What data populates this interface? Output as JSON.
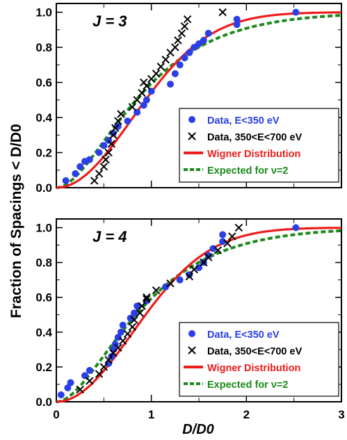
{
  "figure": {
    "ylabel": "Fraction of Spacings < D/D0",
    "xlabel": "D/D0"
  },
  "chart_data": [
    {
      "type": "scatter",
      "panel_label": "J = 3",
      "xlim": [
        0,
        3
      ],
      "ylim": [
        0,
        1.05
      ],
      "x_ticks": [
        "0",
        "1",
        "2",
        "3"
      ],
      "y_ticks": [
        "0.0",
        "0.2",
        "0.4",
        "0.6",
        "0.8",
        "1.0"
      ],
      "legend_position": "lower-right",
      "series": [
        {
          "name": "Data, E<350 eV",
          "marker": "circle",
          "color": "#2b3fe6",
          "points": [
            [
              0.1,
              0.04
            ],
            [
              0.2,
              0.08
            ],
            [
              0.25,
              0.12
            ],
            [
              0.3,
              0.15
            ],
            [
              0.35,
              0.16
            ],
            [
              0.45,
              0.2
            ],
            [
              0.5,
              0.24
            ],
            [
              0.55,
              0.27
            ],
            [
              0.6,
              0.31
            ],
            [
              0.65,
              0.35
            ],
            [
              0.75,
              0.38
            ],
            [
              0.85,
              0.43
            ],
            [
              0.92,
              0.47
            ],
            [
              0.95,
              0.5
            ],
            [
              1.0,
              0.55
            ],
            [
              1.2,
              0.59
            ],
            [
              1.25,
              0.65
            ],
            [
              1.3,
              0.7
            ],
            [
              1.35,
              0.74
            ],
            [
              1.4,
              0.77
            ],
            [
              1.45,
              0.8
            ],
            [
              1.5,
              0.82
            ],
            [
              1.55,
              0.84
            ],
            [
              1.6,
              0.88
            ],
            [
              1.9,
              0.93
            ],
            [
              1.9,
              0.96
            ],
            [
              2.52,
              1.0
            ]
          ]
        },
        {
          "name": "Data, 350<E<700 eV",
          "marker": "x",
          "color": "#000000",
          "points": [
            [
              0.4,
              0.04
            ],
            [
              0.45,
              0.08
            ],
            [
              0.5,
              0.12
            ],
            [
              0.52,
              0.16
            ],
            [
              0.55,
              0.2
            ],
            [
              0.58,
              0.25
            ],
            [
              0.6,
              0.3
            ],
            [
              0.62,
              0.34
            ],
            [
              0.65,
              0.38
            ],
            [
              0.68,
              0.42
            ],
            [
              0.8,
              0.46
            ],
            [
              0.85,
              0.5
            ],
            [
              0.9,
              0.54
            ],
            [
              0.95,
              0.58
            ],
            [
              0.92,
              0.6
            ],
            [
              1.0,
              0.62
            ],
            [
              1.05,
              0.65
            ],
            [
              1.1,
              0.69
            ],
            [
              1.15,
              0.73
            ],
            [
              1.2,
              0.77
            ],
            [
              1.25,
              0.8
            ],
            [
              1.28,
              0.84
            ],
            [
              1.32,
              0.88
            ],
            [
              1.35,
              0.92
            ],
            [
              1.38,
              0.96
            ],
            [
              1.75,
              1.0
            ]
          ]
        },
        {
          "name": "Wigner Distribution",
          "marker": "line-solid",
          "color": "#ee1c1c"
        },
        {
          "name": "Expected for ν=2",
          "marker": "line-dashed",
          "color": "#1a8a1a"
        }
      ]
    },
    {
      "type": "scatter",
      "panel_label": "J = 4",
      "xlim": [
        0,
        3
      ],
      "ylim": [
        0,
        1.05
      ],
      "x_ticks": [
        "0",
        "1",
        "2",
        "3"
      ],
      "y_ticks": [
        "0.0",
        "0.2",
        "0.4",
        "0.6",
        "0.8",
        "1.0"
      ],
      "legend_position": "lower-right",
      "series": [
        {
          "name": "Data, E<350 eV",
          "marker": "circle",
          "color": "#2b3fe6",
          "points": [
            [
              0.05,
              0.04
            ],
            [
              0.12,
              0.08
            ],
            [
              0.15,
              0.11
            ],
            [
              0.3,
              0.15
            ],
            [
              0.35,
              0.18
            ],
            [
              0.55,
              0.22
            ],
            [
              0.58,
              0.26
            ],
            [
              0.6,
              0.3
            ],
            [
              0.62,
              0.33
            ],
            [
              0.65,
              0.37
            ],
            [
              0.68,
              0.4
            ],
            [
              0.7,
              0.44
            ],
            [
              0.78,
              0.48
            ],
            [
              0.82,
              0.51
            ],
            [
              0.85,
              0.55
            ],
            [
              0.95,
              0.58
            ],
            [
              1.15,
              0.66
            ],
            [
              1.3,
              0.7
            ],
            [
              1.4,
              0.73
            ],
            [
              1.5,
              0.77
            ],
            [
              1.55,
              0.8
            ],
            [
              1.6,
              0.84
            ],
            [
              1.65,
              0.88
            ],
            [
              1.75,
              0.92
            ],
            [
              1.75,
              0.96
            ],
            [
              2.52,
              1.0
            ]
          ]
        },
        {
          "name": "Data, 350<E<700 eV",
          "marker": "x",
          "color": "#000000",
          "points": [
            [
              0.25,
              0.07
            ],
            [
              0.35,
              0.12
            ],
            [
              0.45,
              0.16
            ],
            [
              0.5,
              0.2
            ],
            [
              0.55,
              0.24
            ],
            [
              0.6,
              0.28
            ],
            [
              0.65,
              0.31
            ],
            [
              0.7,
              0.35
            ],
            [
              0.75,
              0.39
            ],
            [
              0.8,
              0.43
            ],
            [
              0.82,
              0.47
            ],
            [
              0.88,
              0.51
            ],
            [
              0.9,
              0.55
            ],
            [
              0.95,
              0.59
            ],
            [
              0.95,
              0.6
            ],
            [
              1.05,
              0.64
            ],
            [
              1.2,
              0.68
            ],
            [
              1.4,
              0.72
            ],
            [
              1.45,
              0.76
            ],
            [
              1.55,
              0.8
            ],
            [
              1.6,
              0.83
            ],
            [
              1.7,
              0.87
            ],
            [
              1.8,
              0.91
            ],
            [
              1.85,
              0.95
            ],
            [
              1.92,
              1.0
            ]
          ]
        },
        {
          "name": "Wigner Distribution",
          "marker": "line-solid",
          "color": "#ee1c1c"
        },
        {
          "name": "Expected for ν=2",
          "marker": "line-dashed",
          "color": "#1a8a1a"
        }
      ]
    }
  ]
}
